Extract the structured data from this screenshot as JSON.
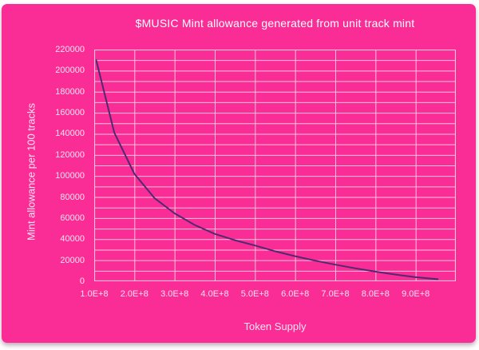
{
  "chart_data": {
    "type": "line",
    "title": "$MUSIC Mint allowance generated from unit track mint",
    "xlabel": "Token Supply",
    "ylabel": "Mint allowance per 100 tracks",
    "x_ticks": [
      "1.0E+8",
      "2.0E+8",
      "3.0E+8",
      "4.0E+8",
      "5.0E+8",
      "6.0E+8",
      "7.0E+8",
      "8.0E+8",
      "9.0E+8"
    ],
    "x_tick_values": [
      100000000.0,
      200000000.0,
      300000000.0,
      400000000.0,
      500000000.0,
      600000000.0,
      700000000.0,
      800000000.0,
      900000000.0
    ],
    "y_ticks": [
      0,
      20000,
      40000,
      60000,
      80000,
      100000,
      120000,
      140000,
      160000,
      180000,
      200000,
      220000
    ],
    "xlim": [
      100000000.0,
      1000000000.0
    ],
    "ylim": [
      0,
      220000
    ],
    "y_grid_step": 10000,
    "grid": true,
    "legend_position": "none",
    "series": [
      {
        "name": "Mint allowance per 100 tracks",
        "points": [
          [
            105000000.0,
            210000
          ],
          [
            150000000.0,
            141000
          ],
          [
            200000000.0,
            102000
          ],
          [
            250000000.0,
            79000
          ],
          [
            300000000.0,
            64500
          ],
          [
            350000000.0,
            53500
          ],
          [
            400000000.0,
            45000
          ],
          [
            450000000.0,
            39000
          ],
          [
            500000000.0,
            34000
          ],
          [
            550000000.0,
            28500
          ],
          [
            600000000.0,
            23800
          ],
          [
            650000000.0,
            19600
          ],
          [
            700000000.0,
            15800
          ],
          [
            750000000.0,
            12300
          ],
          [
            800000000.0,
            9200
          ],
          [
            850000000.0,
            6400
          ],
          [
            900000000.0,
            3900
          ],
          [
            955000000.0,
            2000
          ]
        ]
      }
    ],
    "colors": {
      "background": "#FA2D96",
      "gridline": "#F7C3DC",
      "curve": "#4E2B70",
      "title_text": "#FFFFFF",
      "label_text": "#FBE3EF"
    }
  }
}
